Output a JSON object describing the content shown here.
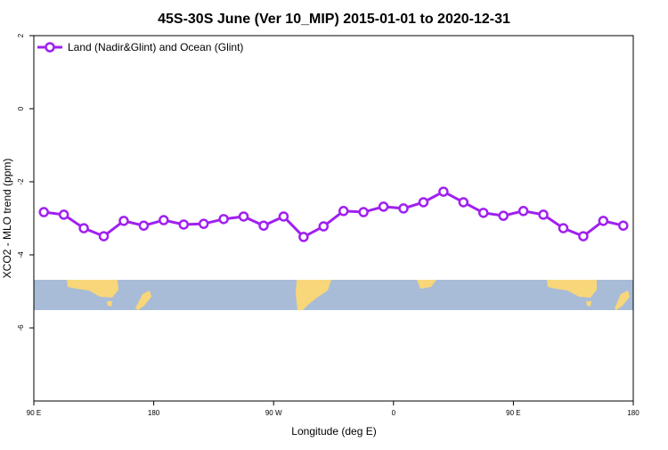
{
  "chart_data": {
    "type": "line",
    "title": "45S-30S June (Ver 10_MIP)   2015-01-01 to 2020-12-31",
    "x_label": "Longitude (deg E)",
    "y_label": "XCO2 - MLO trend (ppm)",
    "x": [
      97.5,
      112.5,
      127.5,
      142.5,
      157.5,
      172.5,
      187.5,
      202.5,
      217.5,
      232.5,
      247.5,
      262.5,
      277.5,
      292.5,
      307.5,
      322.5,
      337.5,
      352.5,
      367.5,
      382.5,
      397.5,
      412.5,
      427.5,
      442.5,
      457.5,
      472.5,
      487.5,
      502.5,
      517.5,
      532.5
    ],
    "series": [
      {
        "name": "Land (Nadir&Glint) and Ocean (Glint)",
        "color": "#a020f0",
        "values": [
          -2.83,
          -2.9,
          -3.27,
          -3.49,
          -3.07,
          -3.2,
          -3.05,
          -3.17,
          -3.15,
          -3.02,
          -2.95,
          -3.2,
          -2.95,
          -3.51,
          -3.22,
          -2.8,
          -2.83,
          -2.68,
          -2.73,
          -2.56,
          -2.27,
          -2.56,
          -2.85,
          -2.93,
          -2.8,
          -2.9,
          -3.27,
          -3.49,
          -3.07,
          -3.2
        ]
      }
    ],
    "xlim": [
      90,
      540
    ],
    "xticks": [
      {
        "value": 90,
        "label": "90 E"
      },
      {
        "value": 180,
        "label": "180"
      },
      {
        "value": 270,
        "label": "90 W"
      },
      {
        "value": 360,
        "label": "0"
      },
      {
        "value": 450,
        "label": "90 E"
      },
      {
        "value": 540,
        "label": "180"
      }
    ],
    "ylim": [
      -8,
      2
    ],
    "yticks": [
      2,
      0,
      -2,
      -4,
      -6
    ],
    "legend": "upper left"
  }
}
